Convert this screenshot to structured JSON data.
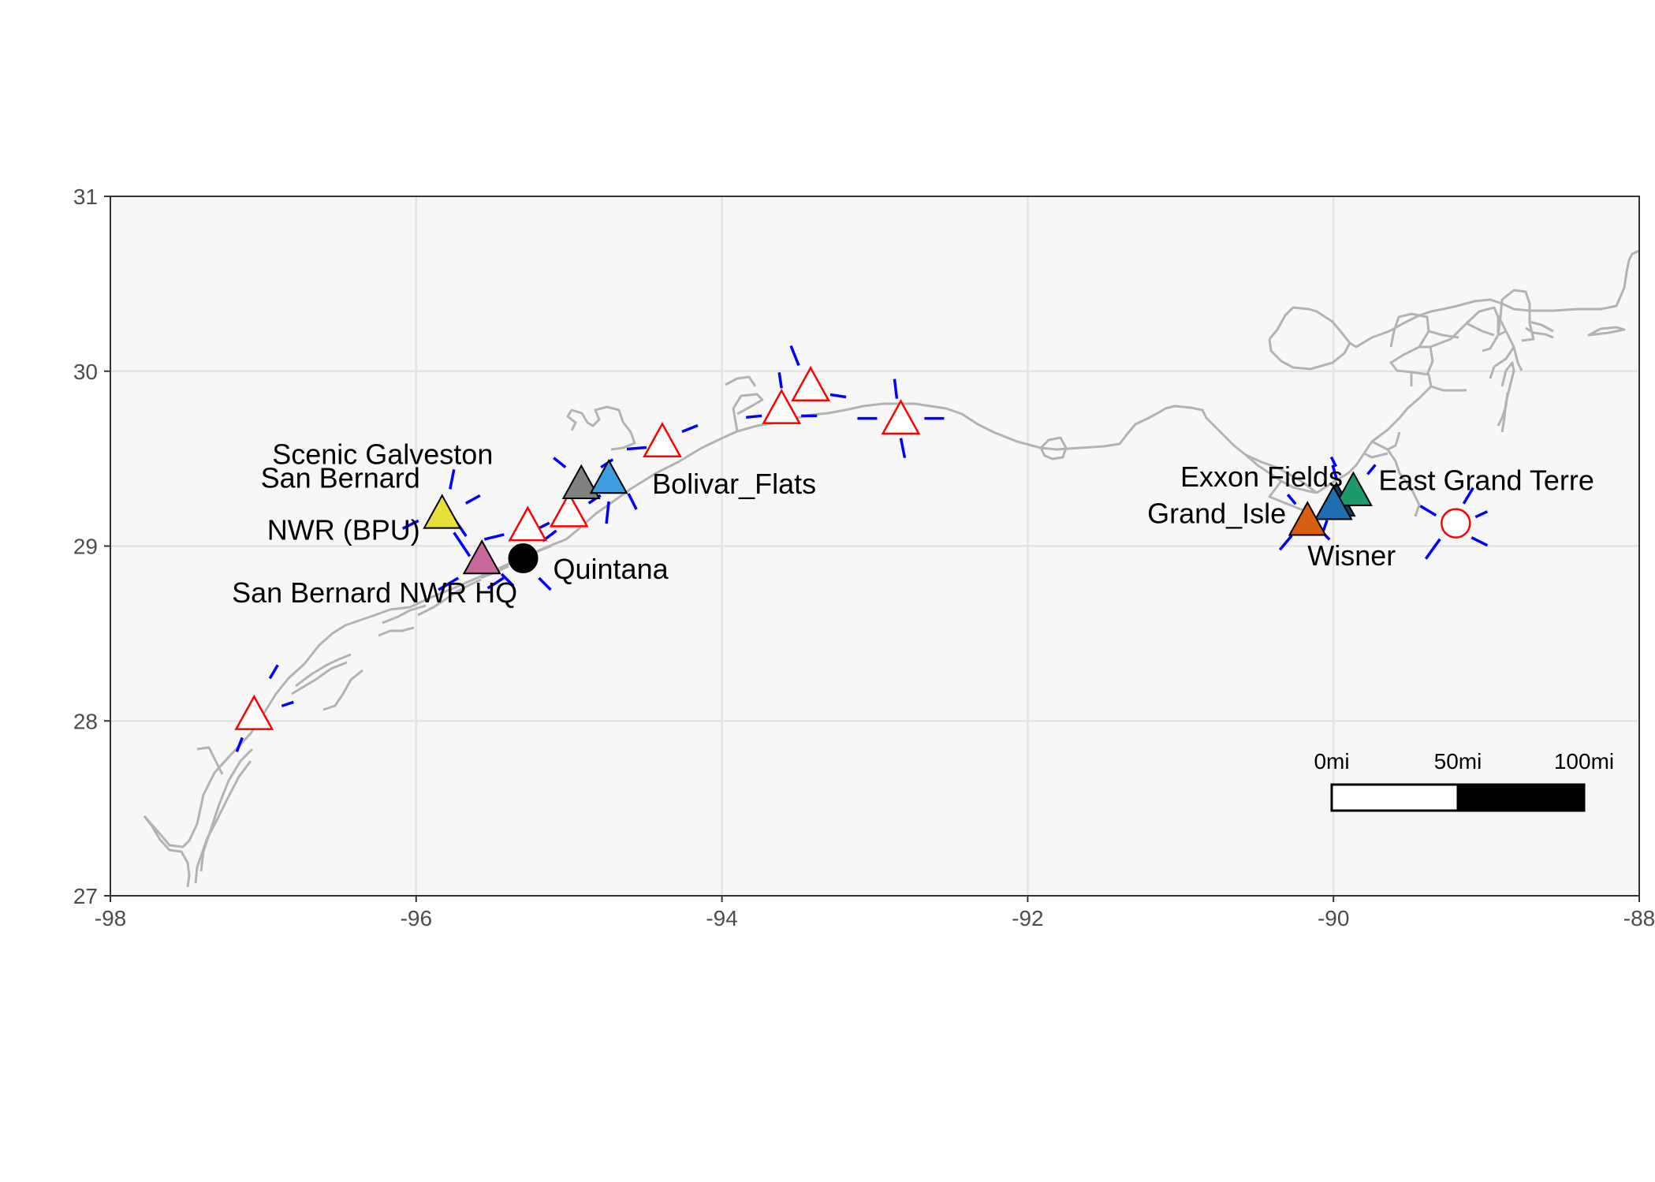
{
  "chart_data": {
    "type": "scatter",
    "title": "",
    "xlabel": "",
    "ylabel": "",
    "xlim": [
      -98,
      -88
    ],
    "ylim": [
      27,
      31
    ],
    "x_ticks": [
      "-98",
      "-96",
      "-94",
      "-92",
      "-90",
      "-88"
    ],
    "y_ticks": [
      "27",
      "28",
      "29",
      "30",
      "31"
    ],
    "x_tick_values": [
      -98,
      -96,
      -94,
      -92,
      -90,
      -88
    ],
    "y_tick_values": [
      27,
      28,
      29,
      30,
      31
    ],
    "grid": true,
    "panel_background": "#f7f7f7",
    "coastline_color": "#b3b3b3",
    "ray_color": "#0000ff",
    "hollow_marker_color": "#ff0000",
    "labeled_sites": [
      {
        "label": "Scenic Galveston",
        "lon": -94.92,
        "lat": 29.36,
        "shape": "triangle",
        "fill": "#808080"
      },
      {
        "label": "Bolivar_Flats",
        "lon": -94.74,
        "lat": 29.39,
        "shape": "triangle",
        "fill": "#3d9ddf"
      },
      {
        "label": "San Bernard\nNWR (BPU)",
        "lon": -95.83,
        "lat": 29.19,
        "shape": "triangle",
        "fill": "#e8df3a"
      },
      {
        "label": "San Bernard NWR HQ",
        "lon": -95.57,
        "lat": 28.93,
        "shape": "triangle",
        "fill": "#c8689b"
      },
      {
        "label": "Quintana",
        "lon": -95.3,
        "lat": 28.93,
        "shape": "circle",
        "fill": "#000000"
      },
      {
        "label": "Exxon Fields",
        "lon": -89.98,
        "lat": 29.26,
        "shape": "triangle",
        "fill": "#0d3b66"
      },
      {
        "label": "East Grand Terre",
        "lon": -89.87,
        "lat": 29.32,
        "shape": "triangle",
        "fill": "#1d9a6c"
      },
      {
        "label": "Grand_Isle",
        "lon": -90.0,
        "lat": 29.24,
        "shape": "triangle",
        "fill": "#1f6fb2"
      },
      {
        "label": "Wisner",
        "lon": -90.17,
        "lat": 29.15,
        "shape": "triangle",
        "fill": "#d95f0e"
      }
    ],
    "unlabeled_sites": [
      {
        "lon": -97.06,
        "lat": 28.04,
        "shape": "triangle"
      },
      {
        "lon": -95.27,
        "lat": 29.12,
        "shape": "triangle"
      },
      {
        "lon": -95.0,
        "lat": 29.2,
        "shape": "triangle"
      },
      {
        "lon": -94.39,
        "lat": 29.6,
        "shape": "triangle"
      },
      {
        "lon": -93.61,
        "lat": 29.79,
        "shape": "triangle"
      },
      {
        "lon": -93.42,
        "lat": 29.92,
        "shape": "triangle"
      },
      {
        "lon": -92.83,
        "lat": 29.73,
        "shape": "triangle"
      },
      {
        "lon": -89.2,
        "lat": 29.13,
        "shape": "circle"
      }
    ],
    "scale_bar": {
      "labels": [
        "0mi",
        "50mi",
        "100mi"
      ]
    }
  }
}
